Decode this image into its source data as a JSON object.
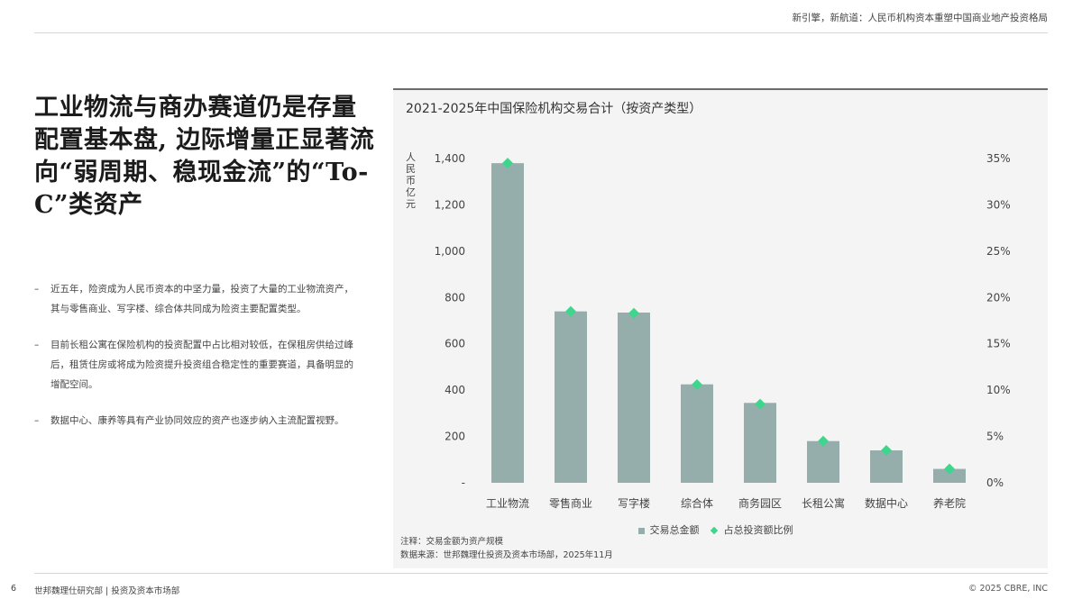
{
  "header": {
    "title": "新引擎，新航道：人民币机构资本重塑中国商业地产投资格局"
  },
  "headline": "工业物流与商办赛道仍是存量配置基本盘, 边际增量正显著流向“弱周期、稳现金流”的“To-C”类资产",
  "bullets": [
    "近五年，险资成为人民币资本的中坚力量，投资了大量的工业物流资产，其与零售商业、写字楼、综合体共同成为险资主要配置类型。",
    "目前长租公寓在保险机构的投资配置中占比相对较低，在保租房供给过峰后，租赁住房或将成为险资提升投资组合稳定性的重要赛道，具备明显的增配空间。",
    "数据中心、康养等具有产业协同效应的资产也逐步纳入主流配置视野。"
  ],
  "bullet_marker": "–",
  "chart": {
    "y_unit": "人民币亿元",
    "note": "注释：交易金额为资产规模",
    "source": "数据来源：世邦魏理仕投资及资本市场部，2025年11月"
  },
  "chart_data": {
    "type": "bar",
    "title": "2021-2025年中国保险机构交易合计（按资产类型）",
    "categories": [
      "工业物流",
      "零售商业",
      "写字楼",
      "综合体",
      "商务园区",
      "长租公寓",
      "数据中心",
      "养老院"
    ],
    "series": [
      {
        "name": "交易总金额",
        "type": "bar",
        "axis": "left",
        "values": [
          1380,
          740,
          735,
          425,
          345,
          180,
          140,
          60
        ]
      },
      {
        "name": "占总投资额比例",
        "type": "scatter",
        "axis": "right",
        "values": [
          34.5,
          18.5,
          18.3,
          10.6,
          8.5,
          4.5,
          3.5,
          1.5
        ]
      }
    ],
    "y_left": {
      "ylim": [
        0,
        1400
      ],
      "ticks": [
        "-",
        "200",
        "400",
        "600",
        "800",
        "1,000",
        "1,200",
        "1,400"
      ]
    },
    "y_right": {
      "ylim": [
        0,
        35
      ],
      "ticks": [
        "0%",
        "5%",
        "10%",
        "15%",
        "20%",
        "25%",
        "30%",
        "35%"
      ]
    },
    "grid": false,
    "legend_position": "bottom-center",
    "colors": {
      "bar": "#95aeac",
      "marker": "#3ed68d"
    }
  },
  "footer": {
    "page_number": "6",
    "left": "世邦魏理仕研究部 | 投资及资本市场部",
    "right": "© 2025 CBRE, INC"
  }
}
